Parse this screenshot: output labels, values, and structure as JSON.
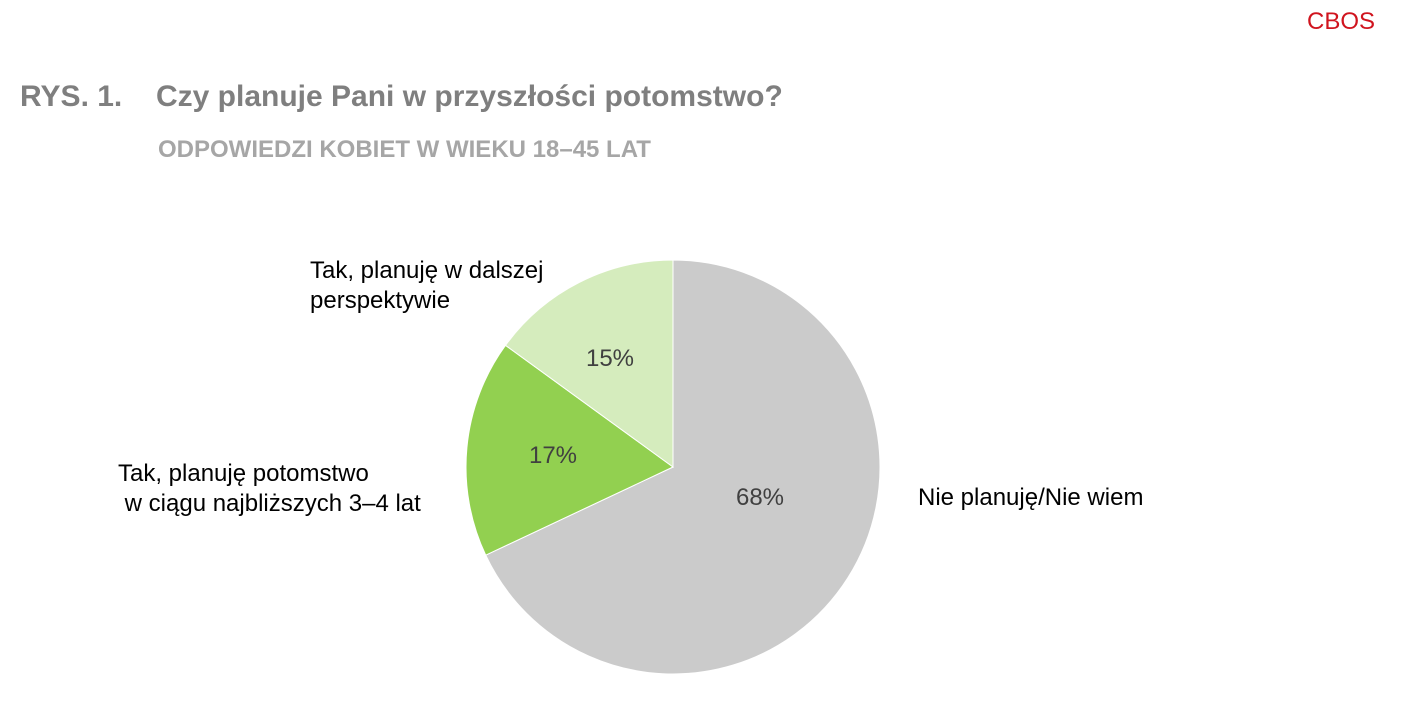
{
  "brand": "CBOS",
  "figure_number": "RYS. 1.",
  "chart_data": {
    "type": "pie",
    "title": "Czy planuje Pani w przyszłości potomstwo?",
    "subtitle": "ODPOWIEDZI KOBIET W WIEKU 18–45 LAT",
    "slices": [
      {
        "label": [
          "Nie planuję/Nie wiem"
        ],
        "value": 68,
        "value_label": "68%",
        "color": "#cbcbcb"
      },
      {
        "label": [
          "Tak, planuję potomstwo",
          " w ciągu najbliższych 3–4 lat"
        ],
        "value": 17,
        "value_label": "17%",
        "color": "#92d050"
      },
      {
        "label": [
          "Tak, planuję w dalszej",
          "perspektywie"
        ],
        "value": 15,
        "value_label": "15%",
        "color": "#d5ecbd"
      }
    ],
    "start": "12 o'clock",
    "direction": "clockwise"
  }
}
